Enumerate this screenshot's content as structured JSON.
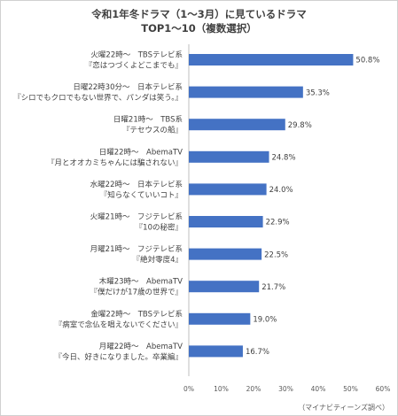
{
  "chart_data": {
    "type": "bar",
    "orientation": "horizontal",
    "title_line1": "令和1年冬ドラマ（1〜3月）に見ているドラマ",
    "title_line2": "TOP1〜10（複数選択）",
    "categories": [
      {
        "line1": "火曜22時〜　TBSテレビ系",
        "line2": "『恋はつづくよどこまでも』"
      },
      {
        "line1": "日曜22時30分〜　日本テレビ系",
        "line2": "『シロでもクロでもない世界で、パンダは笑う。』"
      },
      {
        "line1": "日曜21時〜　TBS系",
        "line2": "『テセウスの船』"
      },
      {
        "line1": "日曜22時〜　AbemaTV",
        "line2": "『月とオオカミちゃんには騙されない』"
      },
      {
        "line1": "水曜22時〜　日本テレビ系",
        "line2": "『知らなくていいコト』"
      },
      {
        "line1": "火曜21時〜　フジテレビ系",
        "line2": "『10の秘密』"
      },
      {
        "line1": "月曜21時〜　フジテレビ系",
        "line2": "『絶対零度4』"
      },
      {
        "line1": "木曜23時〜　AbemaTV",
        "line2": "『僕だけが17歳の世界で』"
      },
      {
        "line1": "金曜22時〜　TBSテレビ系",
        "line2": "『病室で念仏を唱えないでください』"
      },
      {
        "line1": "月曜22時〜　AbemaTV",
        "line2": "『今日、好きになりました。卒業編』"
      }
    ],
    "values": [
      50.8,
      35.3,
      29.8,
      24.8,
      24.0,
      22.9,
      22.5,
      21.7,
      19.0,
      16.7
    ],
    "value_labels": [
      "50.8%",
      "35.3%",
      "29.8%",
      "24.8%",
      "24.0%",
      "22.9%",
      "22.5%",
      "21.7%",
      "19.0%",
      "16.7%"
    ],
    "xlim": [
      0,
      60
    ],
    "xticks": [
      0,
      10,
      20,
      30,
      40,
      50,
      60
    ],
    "xtick_labels": [
      "0%",
      "10%",
      "20%",
      "30%",
      "40%",
      "50%",
      "60%"
    ],
    "bar_color": "#4472c4",
    "grid": false,
    "legend": "none"
  },
  "source": "（マイナビティーンズ調べ）"
}
